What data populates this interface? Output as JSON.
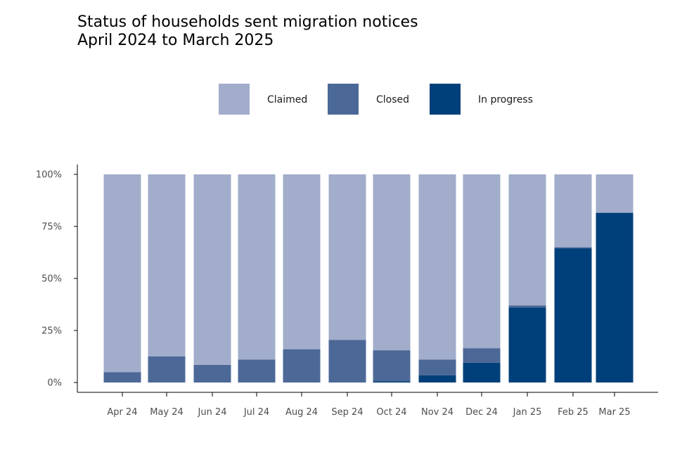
{
  "chart_data": {
    "type": "bar",
    "stacked": true,
    "title": "Status of households sent migration notices",
    "subtitle": "April 2024 to March 2025",
    "xlabel": "",
    "ylabel": "",
    "ylim": [
      0,
      100
    ],
    "y_ticks": [
      "0%",
      "25%",
      "50%",
      "75%",
      "100%"
    ],
    "y_tick_values": [
      0,
      25,
      50,
      75,
      100
    ],
    "categories": [
      "Apr 24",
      "May 24",
      "Jun 24",
      "Jul 24",
      "Aug 24",
      "Sep 24",
      "Oct 24",
      "Nov 24",
      "Dec 24",
      "Jan 25",
      "Feb 25",
      "Mar 25"
    ],
    "legend_position": "top",
    "series": [
      {
        "name": "In progress",
        "color": "#00407a",
        "values": [
          0,
          0,
          0,
          0,
          0,
          0,
          0.5,
          3.5,
          9.5,
          36,
          64.5,
          81.5
        ]
      },
      {
        "name": "Closed",
        "color": "#4c6897",
        "values": [
          5,
          12.5,
          8.5,
          11,
          16,
          20.5,
          15,
          7.5,
          7,
          1,
          0.5,
          0.2
        ]
      },
      {
        "name": "Claimed",
        "color": "#a2adcb",
        "values": [
          95,
          87.5,
          91.5,
          89,
          84,
          79.5,
          84.5,
          89,
          83.5,
          63,
          35,
          18.3
        ]
      }
    ],
    "legend_order": [
      "Claimed",
      "Closed",
      "In progress"
    ]
  }
}
